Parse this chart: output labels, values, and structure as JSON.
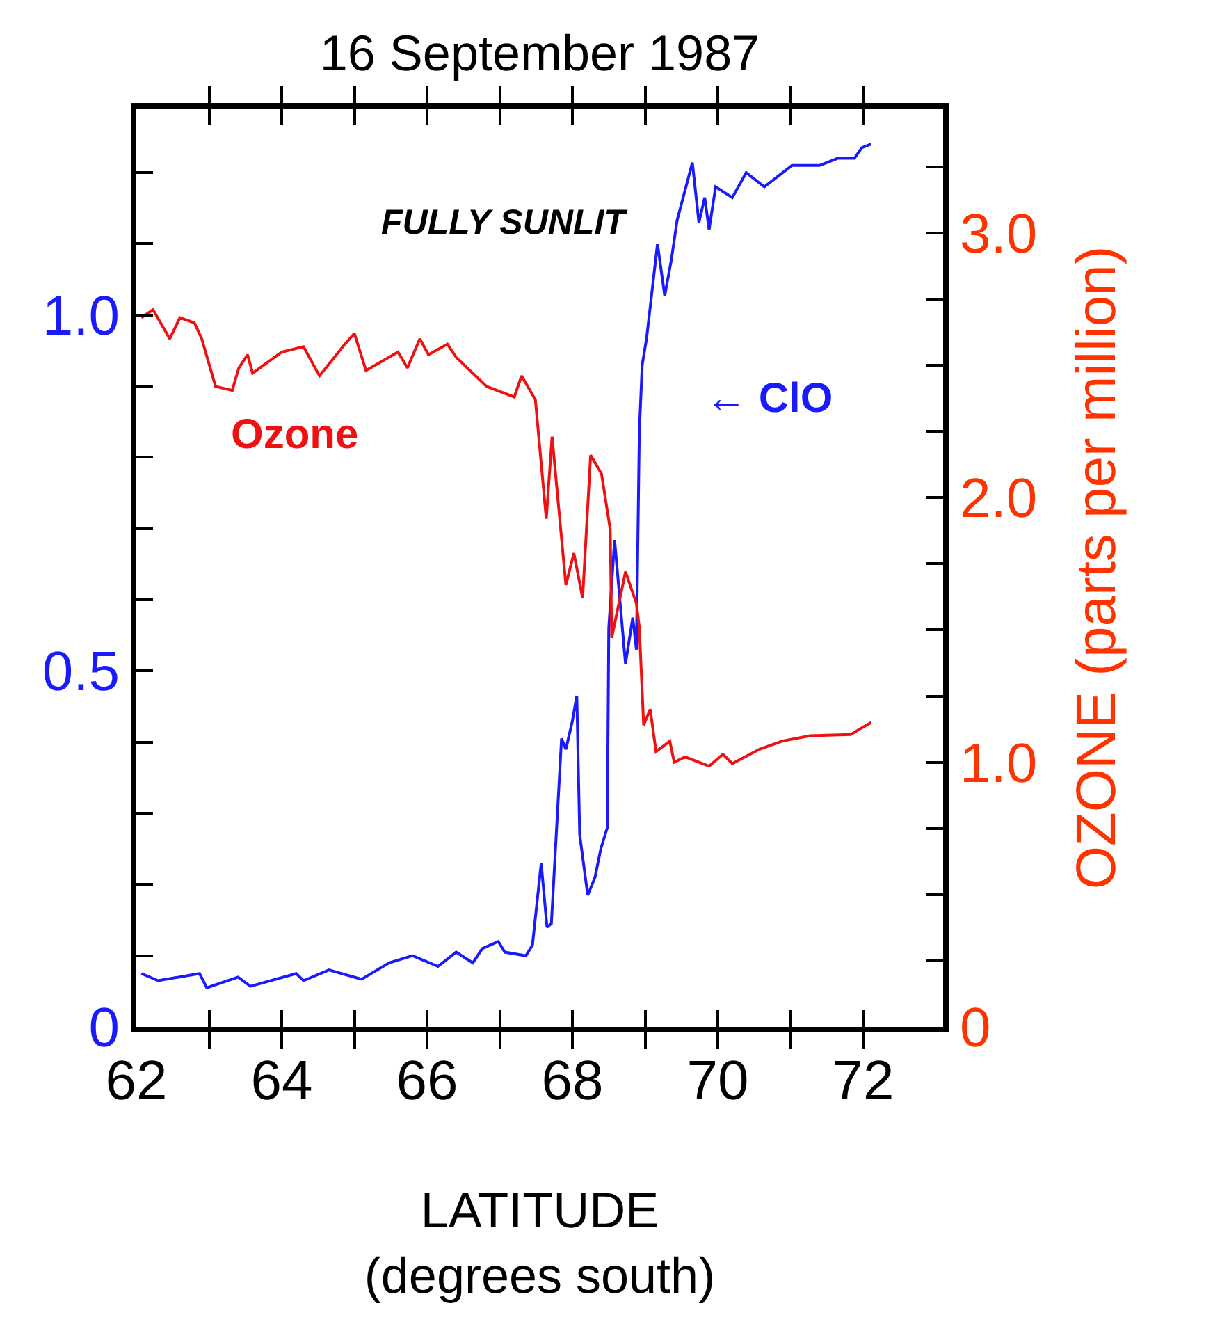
{
  "chart_data": {
    "type": "line",
    "title": "16 September 1987",
    "xlabel": "LATITUDE\n(degrees south)",
    "y2label": "OZONE (parts per million)",
    "annotations": [
      "FULLY SUNLIT"
    ],
    "xlim": [
      62,
      73.1
    ],
    "ylim": [
      0,
      1.29
    ],
    "y2lim": [
      0,
      3.47
    ],
    "xticks": [
      62,
      {
        "value": 63,
        "label": null
      },
      64,
      {
        "value": 65,
        "label": null
      },
      66,
      {
        "value": 67,
        "label": null
      },
      68,
      {
        "value": 69,
        "label": null
      },
      70,
      {
        "value": 71,
        "label": null
      },
      72
    ],
    "yticks": [
      0,
      {
        "value": 0.1,
        "label": null
      },
      {
        "value": 0.2,
        "label": null
      },
      {
        "value": 0.3,
        "label": null
      },
      {
        "value": 0.4,
        "label": null
      },
      0.5,
      {
        "value": 0.6,
        "label": null
      },
      {
        "value": 0.7,
        "label": null
      },
      {
        "value": 0.8,
        "label": null
      },
      {
        "value": 0.9,
        "label": null
      },
      {
        "value": 1,
        "label": "1.0"
      },
      {
        "value": 1.1,
        "label": null
      },
      {
        "value": 1.2,
        "label": null
      }
    ],
    "y2ticks": [
      0,
      {
        "value": 0.25,
        "label": null
      },
      {
        "value": 0.5,
        "label": null
      },
      {
        "value": 0.75,
        "label": null
      },
      {
        "value": 1,
        "label": "1.0"
      },
      {
        "value": 1.25,
        "label": null
      },
      {
        "value": 1.5,
        "label": null
      },
      {
        "value": 1.75,
        "label": null
      },
      {
        "value": 2,
        "label": "2.0"
      },
      {
        "value": 2.25,
        "label": null
      },
      {
        "value": 2.5,
        "label": null
      },
      {
        "value": 2.75,
        "label": null
      },
      {
        "value": 3,
        "label": "3.0"
      },
      {
        "value": 3.25,
        "label": null
      }
    ],
    "legend": false,
    "marker": "none",
    "line_style": "solid",
    "series": [
      {
        "name": "← ClO",
        "color": "#1a1aff",
        "x": [
          62.07,
          62.3,
          62.87,
          62.97,
          63.4,
          63.57,
          64.2,
          64.3,
          64.65,
          65.1,
          65.48,
          65.8,
          66.15,
          66.4,
          66.63,
          66.76,
          66.98,
          67.07,
          67.36,
          67.45,
          67.57,
          67.65,
          67.71,
          67.85,
          67.91,
          68.0,
          68.06,
          68.1,
          68.21,
          68.31,
          68.39,
          68.48,
          68.5,
          68.58,
          68.73,
          68.83,
          68.88,
          68.92,
          68.96,
          69.02,
          69.17,
          69.27,
          69.36,
          69.44,
          69.65,
          69.74,
          69.82,
          69.88,
          69.97,
          70.2,
          70.39,
          70.64,
          71.02,
          71.4,
          71.65,
          71.88,
          71.98,
          72.11
        ],
        "values": [
          0.075,
          0.065,
          0.075,
          0.055,
          0.07,
          0.057,
          0.075,
          0.065,
          0.08,
          0.067,
          0.09,
          0.1,
          0.085,
          0.105,
          0.09,
          0.11,
          0.12,
          0.105,
          0.1,
          0.115,
          0.23,
          0.14,
          0.145,
          0.405,
          0.39,
          0.43,
          0.465,
          0.27,
          0.185,
          0.21,
          0.25,
          0.28,
          0.56,
          0.684,
          0.51,
          0.575,
          0.53,
          0.835,
          0.93,
          0.967,
          1.1,
          1.027,
          1.077,
          1.133,
          1.214,
          1.13,
          1.165,
          1.12,
          1.18,
          1.165,
          1.2,
          1.18,
          1.21,
          1.21,
          1.22,
          1.22,
          1.235,
          1.24
        ]
      },
      {
        "name": "Ozone",
        "color": "#ee1111",
        "axis": "y2",
        "x": [
          62.07,
          62.23,
          62.46,
          62.6,
          62.8,
          62.9,
          63.09,
          63.32,
          63.41,
          63.53,
          63.6,
          64.0,
          64.3,
          64.52,
          64.87,
          65.0,
          65.16,
          65.6,
          65.73,
          65.9,
          66.02,
          66.28,
          66.4,
          66.82,
          67.2,
          67.3,
          67.49,
          67.64,
          67.72,
          67.91,
          68.02,
          68.14,
          68.25,
          68.4,
          68.52,
          68.54,
          68.73,
          68.88,
          68.92,
          68.98,
          69.07,
          69.15,
          69.34,
          69.4,
          69.55,
          69.88,
          70.07,
          70.2,
          70.58,
          70.89,
          71.27,
          71.83,
          71.98,
          72.11
        ],
        "values": [
          2.68,
          2.71,
          2.6,
          2.68,
          2.66,
          2.6,
          2.42,
          2.405,
          2.49,
          2.54,
          2.47,
          2.55,
          2.57,
          2.46,
          2.58,
          2.62,
          2.48,
          2.55,
          2.49,
          2.6,
          2.54,
          2.58,
          2.53,
          2.42,
          2.38,
          2.46,
          2.37,
          1.92,
          2.23,
          1.67,
          1.79,
          1.62,
          2.16,
          2.09,
          1.88,
          1.47,
          1.72,
          1.6,
          1.51,
          1.14,
          1.2,
          1.04,
          1.08,
          1.0,
          1.02,
          0.985,
          1.03,
          0.995,
          1.05,
          1.08,
          1.1,
          1.105,
          1.13,
          1.15
        ]
      }
    ]
  }
}
